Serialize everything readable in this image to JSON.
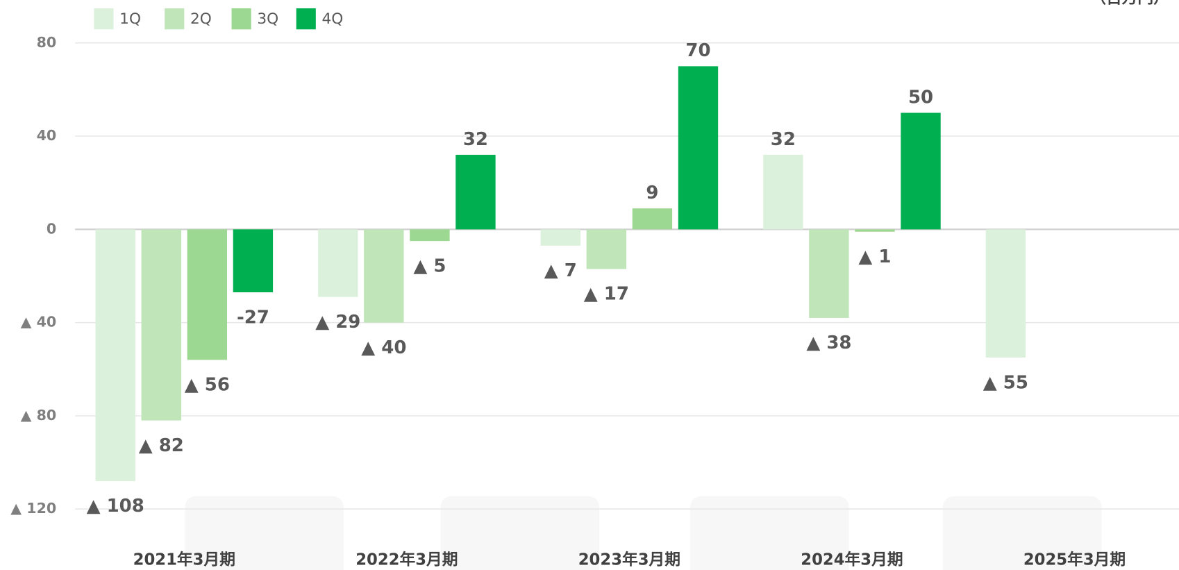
{
  "chart_data": {
    "type": "bar",
    "unit": "（百万円）",
    "categories": [
      "2021年3月期",
      "2022年3月期",
      "2023年3月期",
      "2024年3月期",
      "2025年3月期"
    ],
    "series": [
      {
        "name": "1Q",
        "color": "#dcf1dc",
        "values": [
          -108,
          -29,
          -7,
          32,
          -55
        ],
        "value_labels": [
          "▲ 108",
          "▲ 29",
          "▲ 7",
          "32",
          "▲ 55"
        ]
      },
      {
        "name": "2Q",
        "color": "#bfe5b8",
        "values": [
          -82,
          -40,
          -17,
          -38,
          null
        ],
        "value_labels": [
          "▲ 82",
          "▲ 40",
          "▲ 17",
          "▲ 38",
          null
        ]
      },
      {
        "name": "3Q",
        "color": "#9dd893",
        "values": [
          -56,
          -5,
          9,
          -1,
          null
        ],
        "value_labels": [
          "▲ 56",
          "▲ 5",
          "9",
          "▲ 1",
          null
        ]
      },
      {
        "name": "4Q",
        "color": "#00b050",
        "values": [
          -27,
          32,
          70,
          50,
          null
        ],
        "value_labels": [
          "-27",
          "32",
          "70",
          "50",
          null
        ]
      }
    ],
    "ylim": [
      -120,
      80
    ],
    "yticks": [
      80,
      40,
      0,
      {
        "value": -40,
        "label": "▲ 40"
      },
      {
        "value": -80,
        "label": "▲ 80"
      },
      {
        "value": -120,
        "label": "▲ 120"
      }
    ],
    "grid": true,
    "legend": "top-left"
  }
}
